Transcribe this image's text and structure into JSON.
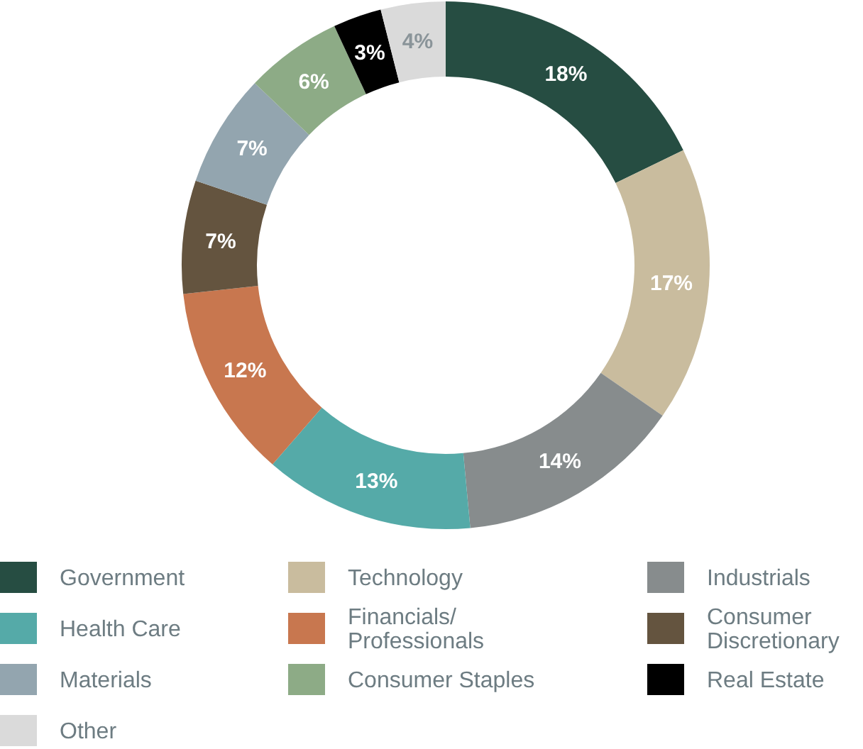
{
  "chart_data": {
    "type": "donut",
    "categories": [
      "Government",
      "Technology",
      "Industrials",
      "Health Care",
      "Financials/ Professionals",
      "Consumer Discretionary",
      "Materials",
      "Consumer Staples",
      "Real Estate",
      "Other"
    ],
    "values": [
      18,
      17,
      14,
      13,
      12,
      7,
      7,
      6,
      3,
      4
    ],
    "colors": [
      "#264d42",
      "#c9bc9e",
      "#878c8d",
      "#55aaa8",
      "#c8774f",
      "#64543f",
      "#93a5af",
      "#8dab86",
      "#000000",
      "#dadada"
    ],
    "value_labels": [
      "18%",
      "17%",
      "14%",
      "13%",
      "12%",
      "7%",
      "7%",
      "6%",
      "3%",
      "4%"
    ],
    "legend": "bottom"
  }
}
